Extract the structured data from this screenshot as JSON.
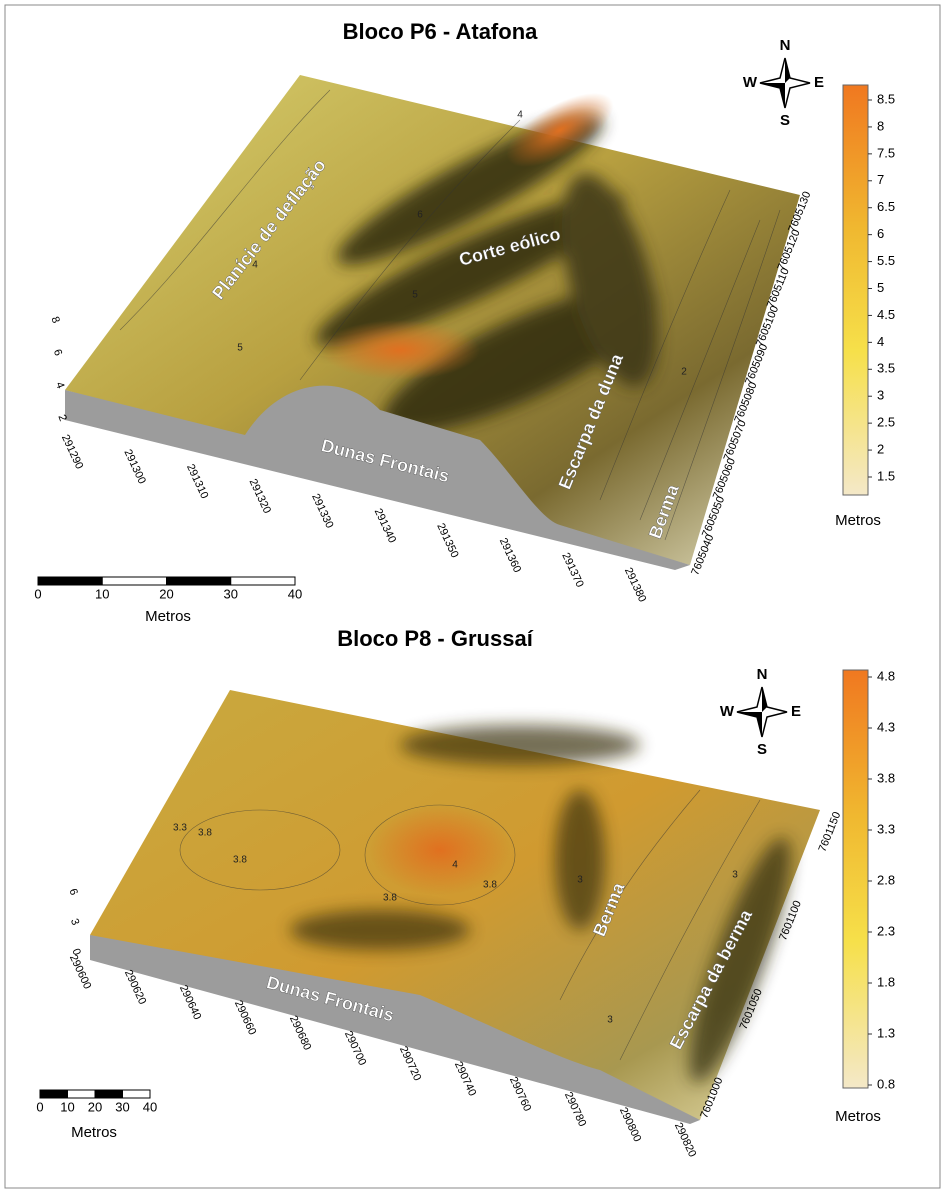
{
  "panels": [
    {
      "title": "Bloco P6 - Atafona",
      "compass": {
        "n": "N",
        "e": "E",
        "s": "S",
        "w": "W"
      },
      "colorbar": {
        "ticks": [
          8.5,
          8,
          7.5,
          7,
          6.5,
          6,
          5.5,
          5,
          4.5,
          4,
          3.5,
          3,
          2.5,
          2,
          1.5
        ],
        "label": "Metros"
      },
      "scale_bar": {
        "ticks": [
          0,
          10,
          20,
          30,
          40
        ],
        "label": "Metros"
      },
      "x_ticks": [
        291290,
        291300,
        291310,
        291320,
        291330,
        291340,
        291350,
        291360,
        291370,
        291380
      ],
      "y_ticks": [
        7605040,
        7605050,
        7605060,
        7605070,
        7605080,
        7605090,
        7605100,
        7605110,
        7605120,
        7605130
      ],
      "z_ticks": [
        2,
        4,
        6,
        8
      ],
      "annotations": [
        "Planície de deflação",
        "Corte eólico",
        "Dunas Frontais",
        "Escarpa da duna",
        "Berma"
      ],
      "contour_labels": [
        "4",
        "5",
        "5",
        "6",
        "4",
        "2"
      ]
    },
    {
      "title": "Bloco P8 -  Grussaí",
      "compass": {
        "n": "N",
        "e": "E",
        "s": "S",
        "w": "W"
      },
      "colorbar": {
        "ticks": [
          4.8,
          4.3,
          3.8,
          3.3,
          2.8,
          2.3,
          1.8,
          1.3,
          0.8
        ],
        "label": "Metros"
      },
      "scale_bar": {
        "ticks": [
          0,
          10,
          20,
          30,
          40
        ],
        "label": "Metros"
      },
      "x_ticks": [
        290600,
        290620,
        290640,
        290660,
        290680,
        290700,
        290720,
        290740,
        290760,
        290780,
        290800,
        290820
      ],
      "y_ticks": [
        7601000,
        7601050,
        7601100,
        7601150
      ],
      "z_ticks": [
        0,
        3,
        6
      ],
      "annotations": [
        "Dunas Frontais",
        "Berma",
        "Escarpa da berma"
      ],
      "contour_labels": [
        "3.8",
        "3.8",
        "3.8",
        "3.8",
        "3.3",
        "3",
        "3",
        "3",
        "4"
      ]
    }
  ]
}
